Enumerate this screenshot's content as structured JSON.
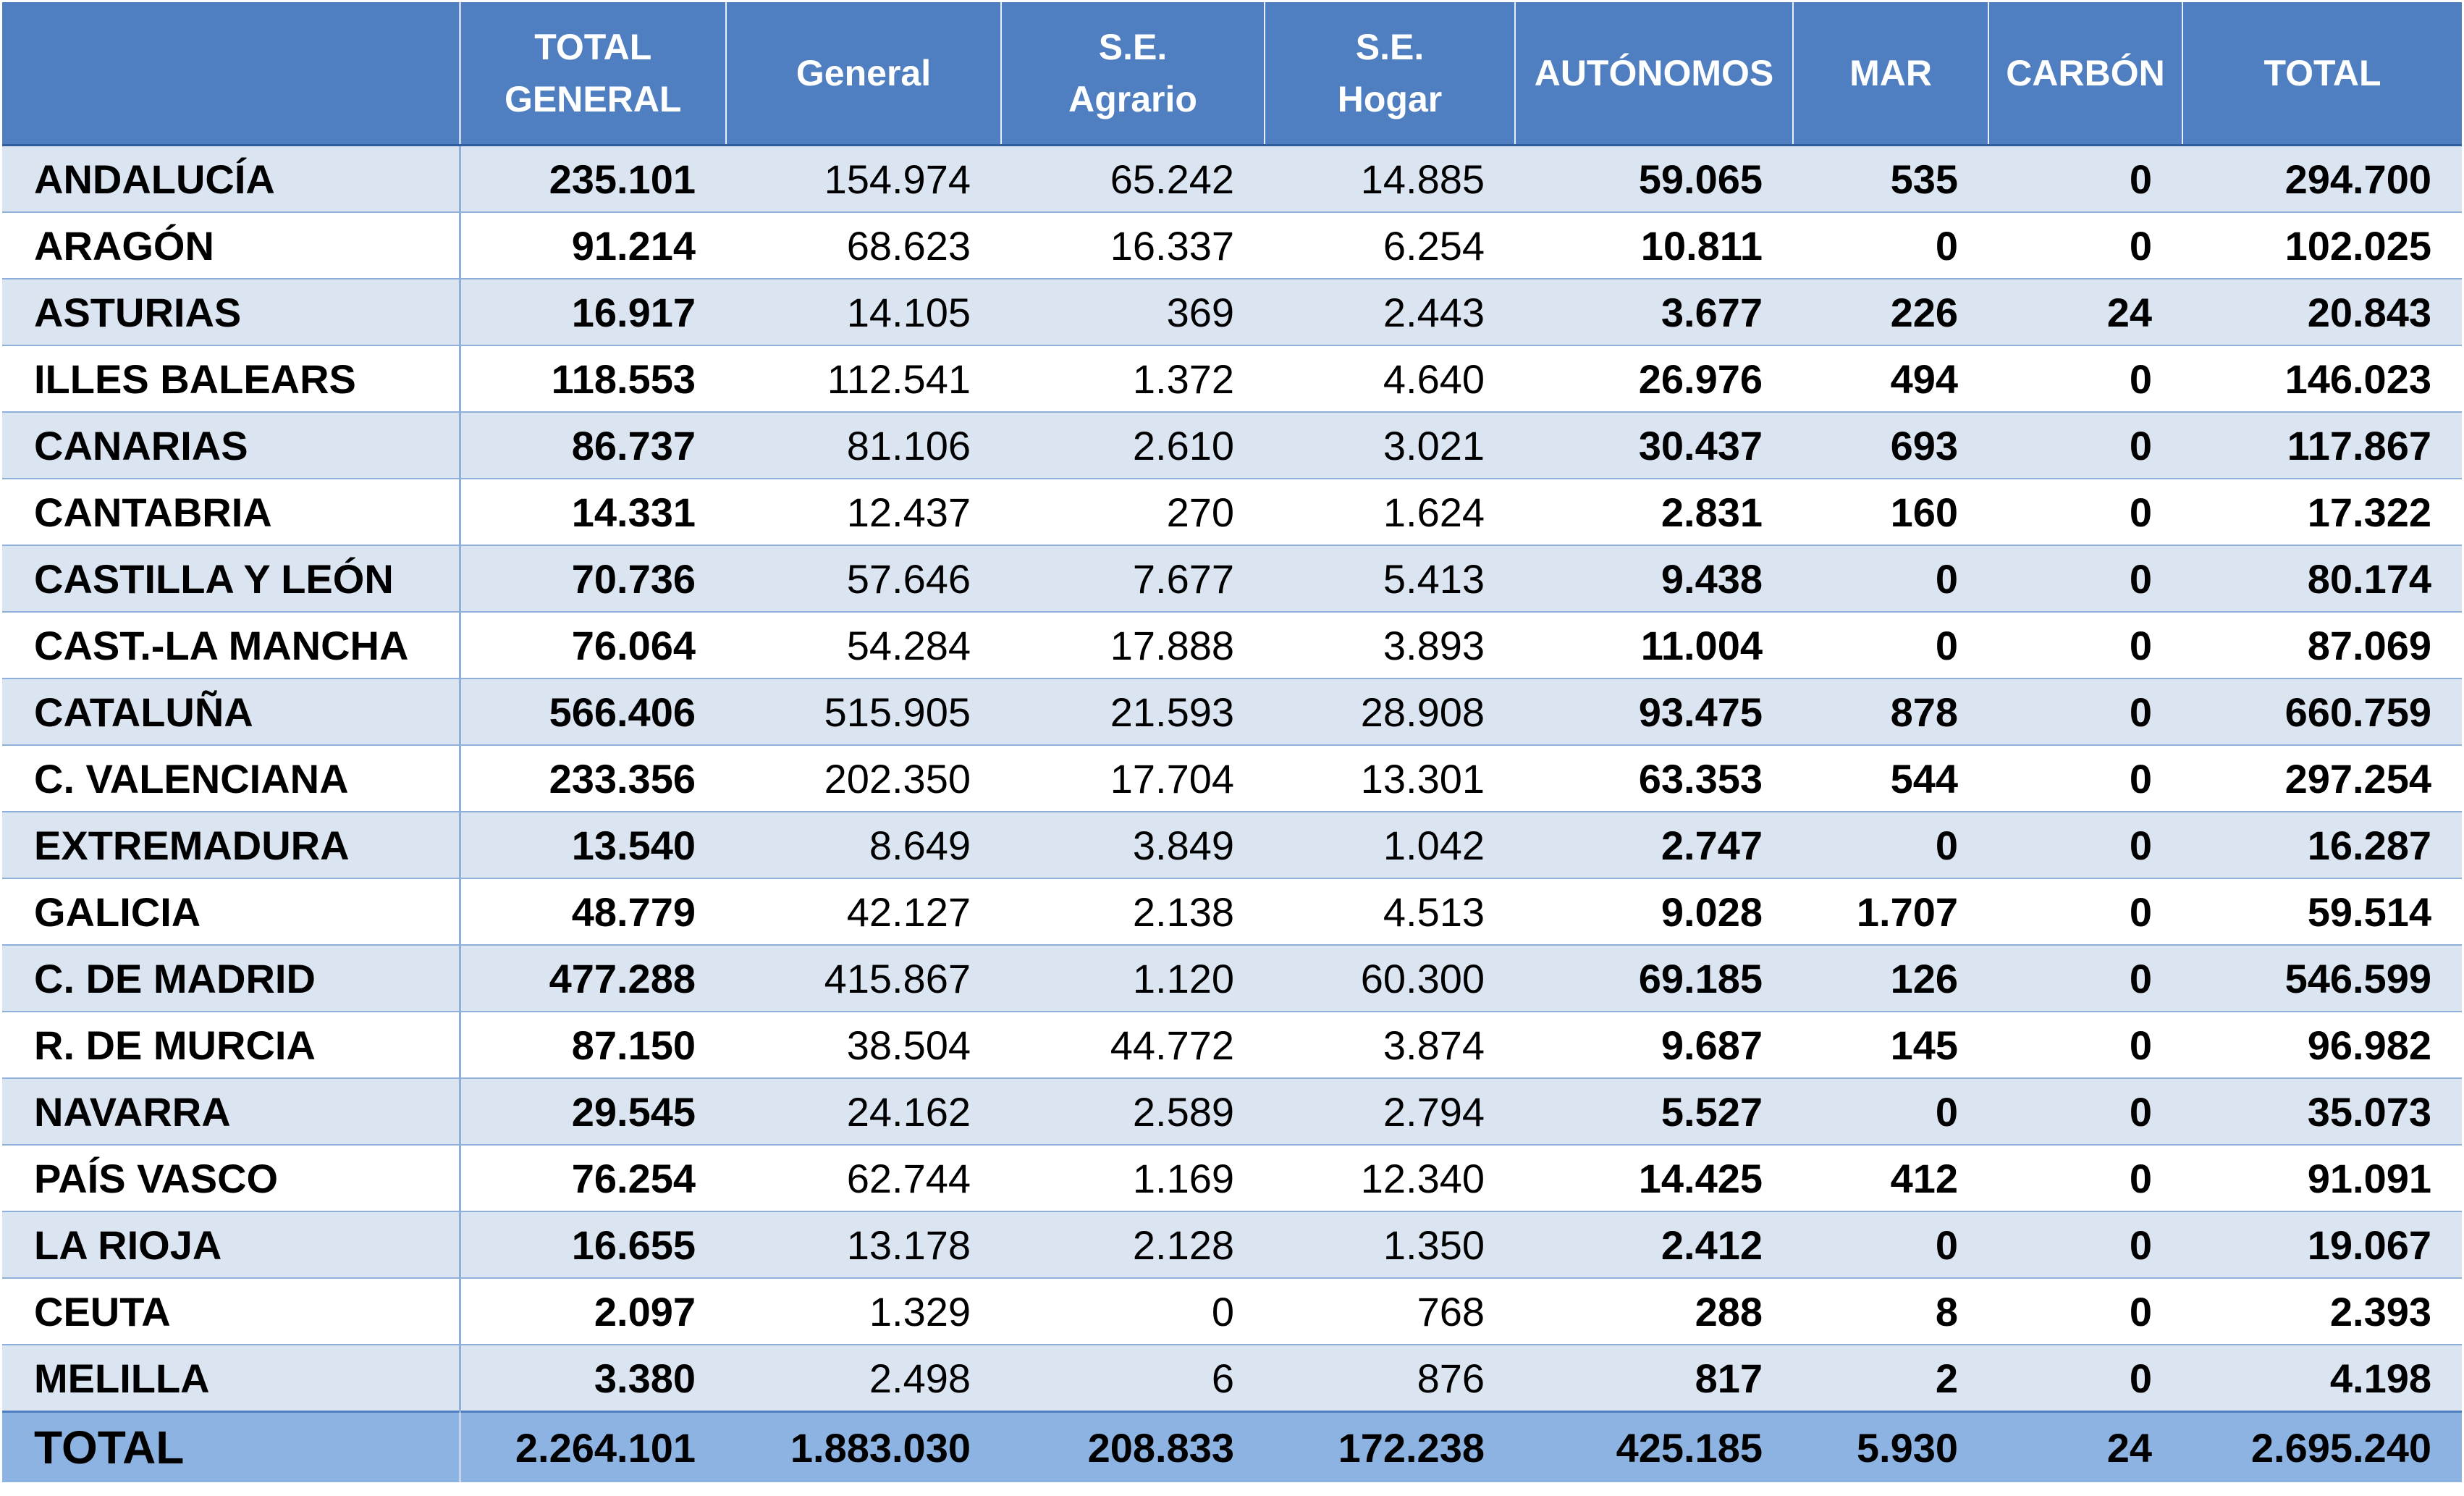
{
  "table": {
    "headers": [
      "",
      "TOTAL\nGENERAL",
      "General",
      "S.E.\nAgrario",
      "S.E.\nHogar",
      "AUTÓNOMOS",
      "MAR",
      "CARBÓN",
      "TOTAL"
    ],
    "rows": [
      [
        "ANDALUCÍA",
        "235.101",
        "154.974",
        "65.242",
        "14.885",
        "59.065",
        "535",
        "0",
        "294.700"
      ],
      [
        "ARAGÓN",
        "91.214",
        "68.623",
        "16.337",
        "6.254",
        "10.811",
        "0",
        "0",
        "102.025"
      ],
      [
        "ASTURIAS",
        "16.917",
        "14.105",
        "369",
        "2.443",
        "3.677",
        "226",
        "24",
        "20.843"
      ],
      [
        "ILLES BALEARS",
        "118.553",
        "112.541",
        "1.372",
        "4.640",
        "26.976",
        "494",
        "0",
        "146.023"
      ],
      [
        "CANARIAS",
        "86.737",
        "81.106",
        "2.610",
        "3.021",
        "30.437",
        "693",
        "0",
        "117.867"
      ],
      [
        "CANTABRIA",
        "14.331",
        "12.437",
        "270",
        "1.624",
        "2.831",
        "160",
        "0",
        "17.322"
      ],
      [
        "CASTILLA Y LEÓN",
        "70.736",
        "57.646",
        "7.677",
        "5.413",
        "9.438",
        "0",
        "0",
        "80.174"
      ],
      [
        "CAST.-LA MANCHA",
        "76.064",
        "54.284",
        "17.888",
        "3.893",
        "11.004",
        "0",
        "0",
        "87.069"
      ],
      [
        "CATALUÑA",
        "566.406",
        "515.905",
        "21.593",
        "28.908",
        "93.475",
        "878",
        "0",
        "660.759"
      ],
      [
        "C. VALENCIANA",
        "233.356",
        "202.350",
        "17.704",
        "13.301",
        "63.353",
        "544",
        "0",
        "297.254"
      ],
      [
        "EXTREMADURA",
        "13.540",
        "8.649",
        "3.849",
        "1.042",
        "2.747",
        "0",
        "0",
        "16.287"
      ],
      [
        "GALICIA",
        "48.779",
        "42.127",
        "2.138",
        "4.513",
        "9.028",
        "1.707",
        "0",
        "59.514"
      ],
      [
        "C. DE MADRID",
        "477.288",
        "415.867",
        "1.120",
        "60.300",
        "69.185",
        "126",
        "0",
        "546.599"
      ],
      [
        "R. DE MURCIA",
        "87.150",
        "38.504",
        "44.772",
        "3.874",
        "9.687",
        "145",
        "0",
        "96.982"
      ],
      [
        "NAVARRA",
        "29.545",
        "24.162",
        "2.589",
        "2.794",
        "5.527",
        "0",
        "0",
        "35.073"
      ],
      [
        "PAÍS VASCO",
        "76.254",
        "62.744",
        "1.169",
        "12.340",
        "14.425",
        "412",
        "0",
        "91.091"
      ],
      [
        "LA RIOJA",
        "16.655",
        "13.178",
        "2.128",
        "1.350",
        "2.412",
        "0",
        "0",
        "19.067"
      ],
      [
        "CEUTA",
        "2.097",
        "1.329",
        "0",
        "768",
        "288",
        "8",
        "0",
        "2.393"
      ],
      [
        "MELILLA",
        "3.380",
        "2.498",
        "6",
        "876",
        "817",
        "2",
        "0",
        "4.198"
      ]
    ],
    "total_row": [
      "TOTAL",
      "2.264.101",
      "1.883.030",
      "208.833",
      "172.238",
      "425.185",
      "5.930",
      "24",
      "2.695.240"
    ]
  },
  "colors": {
    "header_bg": "#4f7fc0",
    "row_band": "#dbe5f1",
    "total_bg": "#8db3e2",
    "grid_line": "#8fb0da"
  }
}
